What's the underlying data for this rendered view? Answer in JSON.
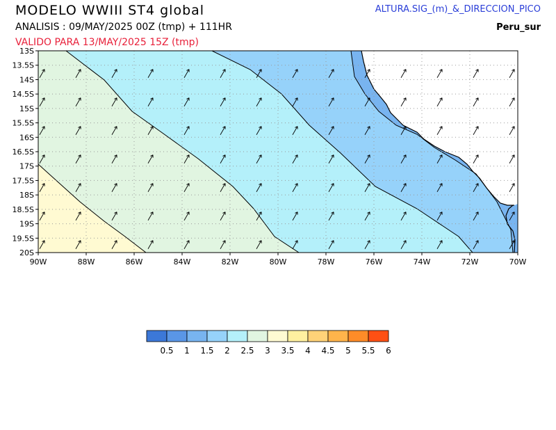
{
  "header": {
    "title": "MODELO WWIII ST4 global",
    "analysis": "ANALISIS : 09/MAY/2025 00Z  (tmp) + 111HR",
    "valid": "VALIDO PARA  13/MAY/2025 15Z  (tmp)",
    "variable": "ALTURA.SIG_(m)_&_DIRECCION_PICO",
    "region": "Peru_sur"
  },
  "map": {
    "lat_labels": [
      "13S",
      "13.5S",
      "14S",
      "14.5S",
      "15S",
      "15.5S",
      "16S",
      "16.5S",
      "17S",
      "17.5S",
      "18S",
      "18.5S",
      "19S",
      "19.5S",
      "20S"
    ],
    "lon_labels": [
      "90W",
      "88W",
      "86W",
      "84W",
      "82W",
      "80W",
      "78W",
      "76W",
      "74W",
      "72W",
      "70W"
    ],
    "wave_direction_deg": 210
  },
  "legend": {
    "labels": [
      "0.5",
      "1",
      "1.5",
      "2",
      "2.5",
      "3",
      "3.5",
      "4",
      "4.5",
      "5",
      "5.5",
      "6"
    ],
    "colors": [
      "#3c78d8",
      "#5a96e6",
      "#78b4f0",
      "#96d2fa",
      "#b4f0fa",
      "#e1f5e1",
      "#fffad2",
      "#fff0a0",
      "#ffd278",
      "#ffb44b",
      "#ff8c28",
      "#ff5014"
    ]
  }
}
